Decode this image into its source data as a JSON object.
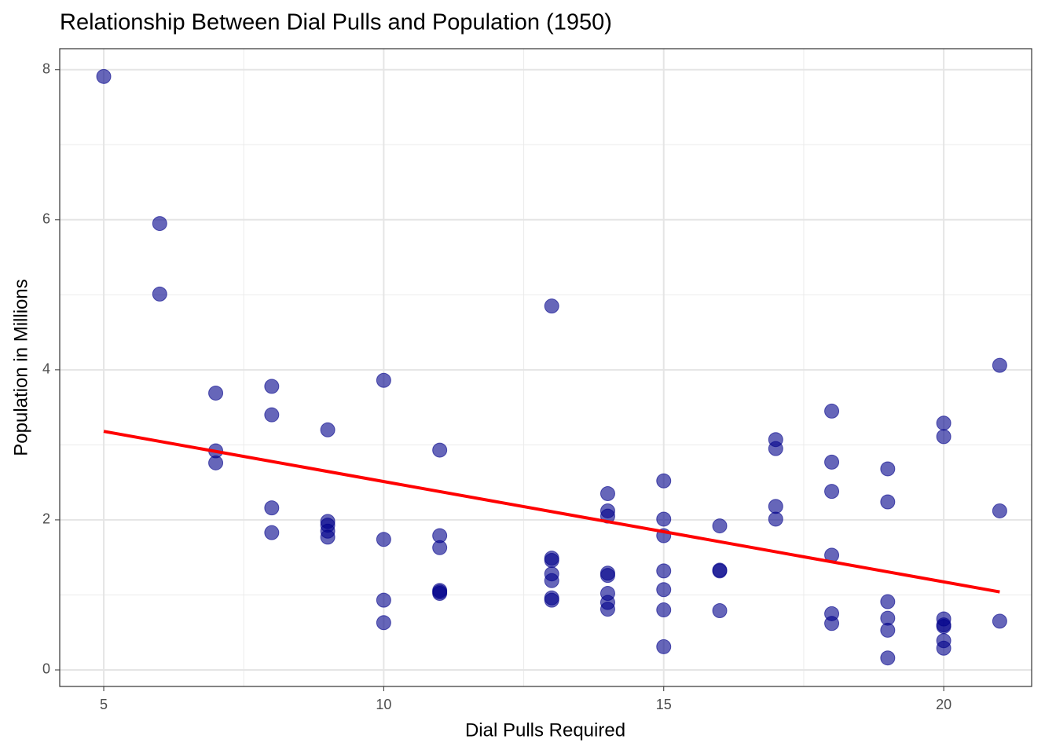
{
  "chart_data": {
    "type": "scatter",
    "title": "Relationship Between Dial Pulls and Population (1950)",
    "x_label": "Dial Pulls Required",
    "y_label": "Population in Millions",
    "xlim": [
      4.214,
      21.57
    ],
    "ylim": [
      -0.22,
      8.28
    ],
    "xticks": [
      5,
      10,
      15,
      20
    ],
    "yticks": [
      0,
      2,
      4,
      6,
      8
    ],
    "xminor": [
      7.5,
      12.5,
      17.5
    ],
    "yminor": [
      1,
      3,
      5,
      7
    ],
    "grid": true,
    "series": [
      {
        "color": "#00008b",
        "x": [
          5,
          6,
          6,
          7,
          7,
          7,
          8,
          8,
          8,
          8,
          9,
          9,
          9,
          9,
          9,
          10,
          10,
          10,
          10,
          11,
          11,
          11,
          11,
          11,
          11,
          13,
          13,
          13,
          13,
          13,
          13,
          13,
          14,
          14,
          14,
          14,
          14,
          14,
          14,
          14,
          15,
          15,
          15,
          15,
          15,
          15,
          15,
          16,
          16,
          16,
          16,
          17,
          17,
          17,
          17,
          18,
          18,
          18,
          18,
          18,
          18,
          19,
          19,
          19,
          19,
          19,
          19,
          20,
          20,
          20,
          20,
          20,
          20,
          20,
          21,
          21,
          21
        ],
        "y": [
          7.91,
          5.95,
          5.01,
          3.69,
          2.92,
          2.76,
          3.78,
          3.4,
          2.16,
          1.83,
          3.2,
          1.98,
          1.93,
          1.85,
          1.77,
          3.86,
          1.74,
          0.93,
          0.63,
          2.93,
          1.79,
          1.63,
          1.06,
          1.04,
          1.02,
          4.85,
          1.49,
          1.46,
          1.28,
          1.19,
          0.96,
          0.93,
          2.35,
          2.12,
          2.05,
          1.29,
          1.26,
          1.02,
          0.9,
          0.81,
          2.52,
          2.01,
          1.79,
          1.32,
          1.07,
          0.8,
          0.31,
          1.92,
          1.33,
          1.32,
          0.79,
          3.07,
          2.95,
          2.18,
          2.01,
          3.45,
          2.77,
          2.38,
          1.53,
          0.75,
          0.62,
          2.68,
          2.24,
          0.91,
          0.69,
          0.53,
          0.16,
          3.29,
          3.11,
          0.68,
          0.6,
          0.58,
          0.39,
          0.29,
          4.06,
          2.12,
          0.65
        ]
      }
    ],
    "trend": {
      "color": "#ff0000",
      "x": [
        5,
        21
      ],
      "y": [
        3.18,
        1.04
      ]
    }
  }
}
